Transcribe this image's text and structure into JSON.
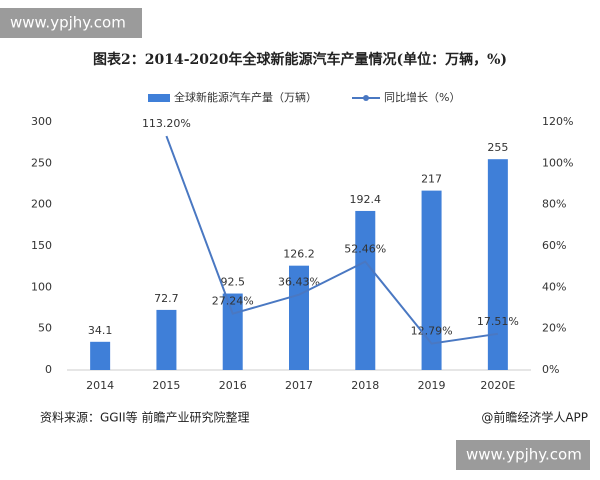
{
  "watermark_top": "www.ypjhy.com",
  "watermark_bottom": "www.ypjhy.com",
  "source": "资料来源：GGII等 前瞻产业研究院整理",
  "credit": "@前瞻经济学人APP",
  "chart_data": {
    "type": "bar_line",
    "title": "图表2：2014-2020年全球新能源汽车产量情况(单位：万辆，%)",
    "categories": [
      "2014",
      "2015",
      "2016",
      "2017",
      "2018",
      "2019",
      "2020E"
    ],
    "series": [
      {
        "name": "全球新能源汽车产量（万辆）",
        "color": "#3f7fd8",
        "type": "bar",
        "values": [
          34.1,
          72.7,
          92.5,
          126.2,
          192.4,
          217,
          255
        ]
      },
      {
        "name": "同比增长（%）",
        "color": "#4a78c2",
        "type": "line",
        "axis": "y2",
        "values": [
          null,
          113.2,
          27.24,
          36.43,
          52.46,
          12.79,
          17.51
        ],
        "value_labels": [
          null,
          "113.20%",
          "27.24%",
          "36.43%",
          "52.46%",
          "12.79%",
          "17.51%"
        ]
      }
    ],
    "ylim": [
      0,
      300
    ],
    "yticks": [
      0,
      50,
      100,
      150,
      200,
      250,
      300
    ],
    "y2lim": [
      0,
      120
    ],
    "y2ticks": [
      {
        "value": 0,
        "label": "0%"
      },
      {
        "value": 20,
        "label": "20%"
      },
      {
        "value": 40,
        "label": "40%"
      },
      {
        "value": 60,
        "label": "60%"
      },
      {
        "value": 80,
        "label": "80%"
      },
      {
        "value": 100,
        "label": "100%"
      },
      {
        "value": 120,
        "label": "120%"
      }
    ],
    "grid": false
  }
}
